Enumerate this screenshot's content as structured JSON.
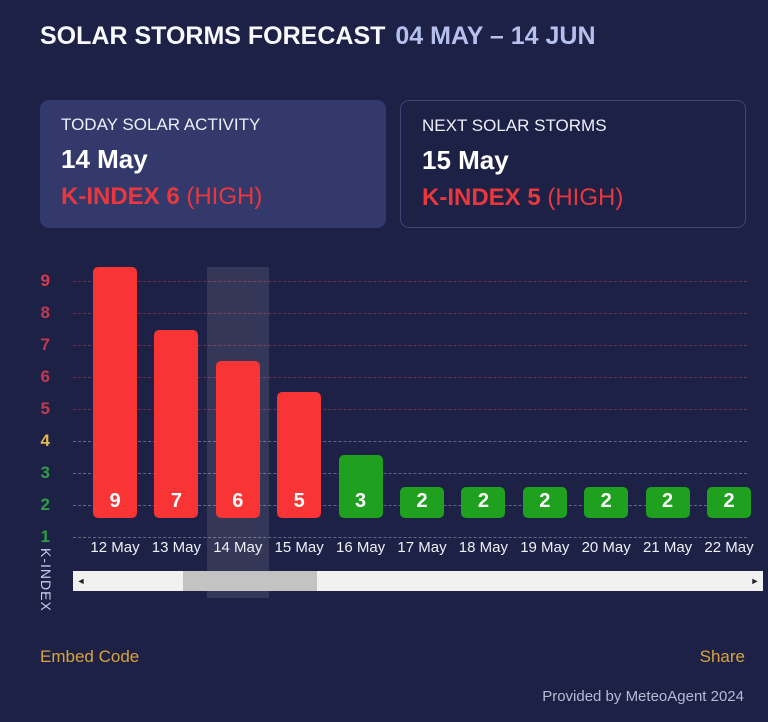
{
  "header": {
    "title": "SOLAR STORMS FORECAST",
    "date_range": "04 MAY – 14 JUN"
  },
  "cards": {
    "today": {
      "label": "TODAY SOLAR ACTIVITY",
      "date": "14 May",
      "kindex": "K-INDEX 6",
      "level": "(HIGH)"
    },
    "next": {
      "label": "NEXT SOLAR STORMS",
      "date": "15 May",
      "kindex": "K-INDEX 5",
      "level": "(HIGH)"
    }
  },
  "chart_data": {
    "type": "bar",
    "x": [
      "12 May",
      "13 May",
      "14 May",
      "15 May",
      "16 May",
      "17 May",
      "18 May",
      "19 May",
      "20 May",
      "21 May",
      "22 May"
    ],
    "values": [
      9,
      7,
      6,
      5,
      3,
      2,
      2,
      2,
      2,
      2,
      2
    ],
    "bar_colors": [
      "#f93434",
      "#f93434",
      "#f93434",
      "#f93434",
      "#1fa11f",
      "#1fa11f",
      "#1fa11f",
      "#1fa11f",
      "#1fa11f",
      "#1fa11f",
      "#1fa11f"
    ],
    "highlighted_x": "14 May",
    "ylabel": "K-INDEX",
    "xlabel": "",
    "title": "",
    "yticks_top_to_bottom": [
      9,
      8,
      7,
      6,
      5,
      4,
      3,
      2,
      1
    ],
    "ytick_colors": [
      "#d63c4e",
      "#c23a52",
      "#c23a52",
      "#c23a52",
      "#c23a52",
      "#e3b94e",
      "#2f9e44",
      "#2f9e44",
      "#2f9e44"
    ],
    "grid_colors": [
      "rgba(210,60,95,0.45)",
      "rgba(210,60,95,0.45)",
      "rgba(210,60,95,0.45)",
      "rgba(210,60,95,0.45)",
      "rgba(210,60,95,0.45)",
      "rgba(205,210,230,0.40)",
      "rgba(205,210,230,0.40)",
      "rgba(205,210,230,0.40)",
      "rgba(205,210,230,0.40)"
    ],
    "ylim": [
      1,
      9.5
    ],
    "grid": "dashed horizontal",
    "legend_position": "none"
  },
  "scrollbar": {
    "left_arrow": "◄",
    "right_arrow": "►"
  },
  "footer": {
    "embed": "Embed Code",
    "share": "Share",
    "provided": "Provided by MeteoAgent 2024"
  },
  "colors": {
    "background": "#1d2145",
    "card_background": "#333a6b",
    "card_border": "#3e4576",
    "accent_red": "#e8373d",
    "bar_red": "#f93434",
    "bar_green": "#1fa11f",
    "link_gold": "#d9a43e",
    "title_date": "#b6c0ee",
    "scrollbar_track": "#f1f1f1",
    "scrollbar_thumb": "#c3c3c3"
  }
}
